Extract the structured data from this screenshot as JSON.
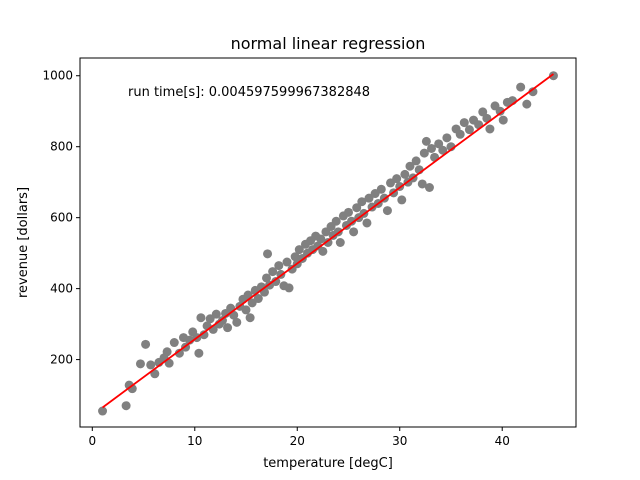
{
  "chart_data": {
    "type": "scatter",
    "title": "normal linear regression",
    "xlabel": "temperature [degC]",
    "ylabel": "revenue [dollars]",
    "annotation": "run time[s]: 0.004597599967382848",
    "xlim": [
      -1.2,
      47.2
    ],
    "ylim": [
      10,
      1050
    ],
    "xticks": [
      0,
      10,
      20,
      30,
      40
    ],
    "yticks": [
      200,
      400,
      600,
      800,
      1000
    ],
    "grid": false,
    "point_color": "#808080",
    "line_color": "#ff0000",
    "points": [
      [
        1.0,
        55
      ],
      [
        3.3,
        70
      ],
      [
        3.6,
        128
      ],
      [
        3.9,
        118
      ],
      [
        4.7,
        188
      ],
      [
        5.2,
        243
      ],
      [
        5.7,
        185
      ],
      [
        6.1,
        160
      ],
      [
        6.5,
        192
      ],
      [
        7.0,
        205
      ],
      [
        7.3,
        222
      ],
      [
        7.5,
        190
      ],
      [
        8.0,
        248
      ],
      [
        8.5,
        218
      ],
      [
        8.9,
        262
      ],
      [
        9.1,
        235
      ],
      [
        9.5,
        255
      ],
      [
        9.8,
        278
      ],
      [
        10.2,
        262
      ],
      [
        10.4,
        218
      ],
      [
        10.6,
        318
      ],
      [
        10.9,
        270
      ],
      [
        11.2,
        295
      ],
      [
        11.5,
        315
      ],
      [
        11.8,
        285
      ],
      [
        12.1,
        328
      ],
      [
        12.4,
        300
      ],
      [
        12.7,
        310
      ],
      [
        13.0,
        330
      ],
      [
        13.2,
        290
      ],
      [
        13.5,
        345
      ],
      [
        13.8,
        325
      ],
      [
        14.1,
        305
      ],
      [
        14.4,
        350
      ],
      [
        14.7,
        370
      ],
      [
        15.0,
        340
      ],
      [
        15.2,
        382
      ],
      [
        15.4,
        318
      ],
      [
        15.6,
        360
      ],
      [
        15.9,
        395
      ],
      [
        16.2,
        372
      ],
      [
        16.5,
        405
      ],
      [
        16.8,
        390
      ],
      [
        17.0,
        430
      ],
      [
        17.1,
        498
      ],
      [
        17.3,
        410
      ],
      [
        17.6,
        448
      ],
      [
        17.9,
        420
      ],
      [
        18.2,
        465
      ],
      [
        18.4,
        440
      ],
      [
        18.7,
        408
      ],
      [
        19.0,
        475
      ],
      [
        19.2,
        402
      ],
      [
        19.5,
        455
      ],
      [
        19.8,
        490
      ],
      [
        20.0,
        470
      ],
      [
        20.2,
        510
      ],
      [
        20.5,
        485
      ],
      [
        20.8,
        525
      ],
      [
        21.0,
        500
      ],
      [
        21.3,
        535
      ],
      [
        21.5,
        510
      ],
      [
        21.8,
        548
      ],
      [
        22.0,
        520
      ],
      [
        22.3,
        540
      ],
      [
        22.5,
        505
      ],
      [
        22.8,
        560
      ],
      [
        23.0,
        530
      ],
      [
        23.3,
        575
      ],
      [
        23.5,
        550
      ],
      [
        23.8,
        590
      ],
      [
        24.0,
        560
      ],
      [
        24.2,
        530
      ],
      [
        24.5,
        605
      ],
      [
        24.8,
        578
      ],
      [
        25.0,
        615
      ],
      [
        25.3,
        590
      ],
      [
        25.5,
        560
      ],
      [
        25.8,
        628
      ],
      [
        26.0,
        600
      ],
      [
        26.3,
        645
      ],
      [
        26.5,
        612
      ],
      [
        26.8,
        585
      ],
      [
        27.0,
        655
      ],
      [
        27.3,
        630
      ],
      [
        27.6,
        668
      ],
      [
        27.9,
        640
      ],
      [
        28.2,
        680
      ],
      [
        28.5,
        655
      ],
      [
        28.8,
        620
      ],
      [
        29.1,
        698
      ],
      [
        29.4,
        670
      ],
      [
        29.7,
        710
      ],
      [
        30.0,
        688
      ],
      [
        30.2,
        650
      ],
      [
        30.5,
        722
      ],
      [
        30.8,
        700
      ],
      [
        31.0,
        745
      ],
      [
        31.3,
        712
      ],
      [
        31.6,
        760
      ],
      [
        31.9,
        735
      ],
      [
        32.2,
        695
      ],
      [
        32.4,
        782
      ],
      [
        32.6,
        815
      ],
      [
        32.9,
        685
      ],
      [
        33.1,
        795
      ],
      [
        33.4,
        770
      ],
      [
        33.8,
        808
      ],
      [
        34.2,
        790
      ],
      [
        34.6,
        825
      ],
      [
        35.0,
        800
      ],
      [
        35.5,
        850
      ],
      [
        35.9,
        835
      ],
      [
        36.3,
        868
      ],
      [
        36.8,
        848
      ],
      [
        37.2,
        875
      ],
      [
        37.7,
        862
      ],
      [
        38.1,
        898
      ],
      [
        38.5,
        880
      ],
      [
        38.8,
        850
      ],
      [
        39.3,
        915
      ],
      [
        39.8,
        900
      ],
      [
        40.1,
        875
      ],
      [
        40.5,
        925
      ],
      [
        41.0,
        930
      ],
      [
        41.8,
        968
      ],
      [
        42.4,
        920
      ],
      [
        43.0,
        955
      ],
      [
        45.0,
        1000
      ]
    ],
    "regression_line": {
      "x": [
        1.0,
        45.0
      ],
      "y": [
        65,
        1005
      ]
    }
  }
}
